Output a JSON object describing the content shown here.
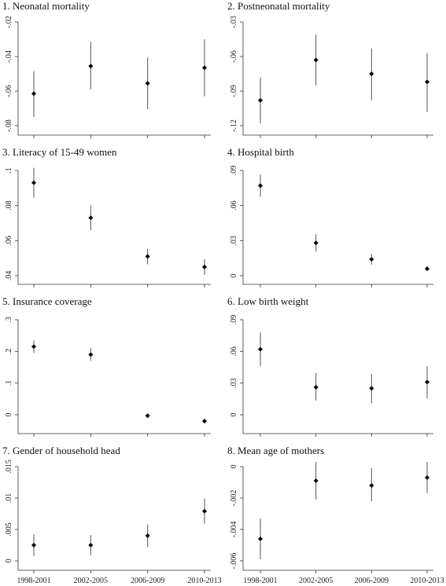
{
  "chart_data": [
    {
      "type": "scatter",
      "title": "1. Neonatal mortality",
      "categories": [
        "1998-2001",
        "2002-2005",
        "2006-2009",
        "2010-2013"
      ],
      "ylim": [
        -0.08,
        -0.02
      ],
      "yticks": [
        -0.08,
        -0.06,
        -0.04,
        -0.02
      ],
      "ytick_labels": [
        "-.08",
        "-.06",
        "-.04",
        "-.02"
      ],
      "show_xlabels": false,
      "points": [
        {
          "x": "1998-2001",
          "y": -0.0615,
          "lo": -0.075,
          "hi": -0.0485
        },
        {
          "x": "2002-2005",
          "y": -0.0455,
          "lo": -0.059,
          "hi": -0.0315
        },
        {
          "x": "2006-2009",
          "y": -0.0555,
          "lo": -0.0705,
          "hi": -0.0405
        },
        {
          "x": "2010-2013",
          "y": -0.0465,
          "lo": -0.063,
          "hi": -0.03
        }
      ]
    },
    {
      "type": "scatter",
      "title": "2. Postneonatal mortality",
      "categories": [
        "1998-2001",
        "2002-2005",
        "2006-2009",
        "2010-2013"
      ],
      "ylim": [
        -0.12,
        -0.03
      ],
      "yticks": [
        -0.12,
        -0.09,
        -0.06,
        -0.03
      ],
      "ytick_labels": [
        "-.12",
        "-.09",
        "-.06",
        "-.03"
      ],
      "show_xlabels": false,
      "points": [
        {
          "x": "1998-2001",
          "y": -0.098,
          "lo": -0.118,
          "hi": -0.078
        },
        {
          "x": "2002-2005",
          "y": -0.063,
          "lo": -0.085,
          "hi": -0.041
        },
        {
          "x": "2006-2009",
          "y": -0.075,
          "lo": -0.098,
          "hi": -0.053
        },
        {
          "x": "2010-2013",
          "y": -0.082,
          "lo": -0.108,
          "hi": -0.057
        }
      ]
    },
    {
      "type": "scatter",
      "title": "3. Literacy of 15-49 women",
      "categories": [
        "1998-2001",
        "2002-2005",
        "2006-2009",
        "2010-2013"
      ],
      "ylim": [
        0.04,
        0.1
      ],
      "yticks": [
        0.04,
        0.06,
        0.08,
        0.1
      ],
      "ytick_labels": [
        ".04",
        ".06",
        ".08",
        ".1"
      ],
      "show_xlabels": false,
      "points": [
        {
          "x": "1998-2001",
          "y": 0.093,
          "lo": 0.0845,
          "hi": 0.1015
        },
        {
          "x": "2002-2005",
          "y": 0.073,
          "lo": 0.066,
          "hi": 0.08
        },
        {
          "x": "2006-2009",
          "y": 0.051,
          "lo": 0.0465,
          "hi": 0.0555
        },
        {
          "x": "2010-2013",
          "y": 0.045,
          "lo": 0.0405,
          "hi": 0.0495
        }
      ]
    },
    {
      "type": "scatter",
      "title": "4. Hospital birth",
      "categories": [
        "1998-2001",
        "2002-2005",
        "2006-2009",
        "2010-2013"
      ],
      "ylim": [
        0,
        0.09
      ],
      "yticks": [
        0,
        0.03,
        0.06,
        0.09
      ],
      "ytick_labels": [
        "0",
        ".03",
        ".06",
        ".09"
      ],
      "show_xlabels": false,
      "points": [
        {
          "x": "1998-2001",
          "y": 0.077,
          "lo": 0.0675,
          "hi": 0.0865
        },
        {
          "x": "2002-2005",
          "y": 0.028,
          "lo": 0.0205,
          "hi": 0.0355
        },
        {
          "x": "2006-2009",
          "y": 0.014,
          "lo": 0.0095,
          "hi": 0.0185
        },
        {
          "x": "2010-2013",
          "y": 0.006,
          "lo": 0.004,
          "hi": 0.008
        }
      ]
    },
    {
      "type": "scatter",
      "title": "5. Insurance coverage",
      "categories": [
        "1998-2001",
        "2002-2005",
        "2006-2009",
        "2010-2013"
      ],
      "ylim": [
        0,
        0.3
      ],
      "yticks": [
        0,
        0.1,
        0.2,
        0.3
      ],
      "ytick_labels": [
        "0",
        ".1",
        ".2",
        ".3"
      ],
      "show_xlabels": false,
      "points": [
        {
          "x": "1998-2001",
          "y": 0.215,
          "lo": 0.195,
          "hi": 0.235
        },
        {
          "x": "2002-2005",
          "y": 0.19,
          "lo": 0.17,
          "hi": 0.21
        },
        {
          "x": "2006-2009",
          "y": -0.003,
          "lo": -0.006,
          "hi": 0.0
        },
        {
          "x": "2010-2013",
          "y": -0.02,
          "lo": -0.023,
          "hi": -0.017
        }
      ]
    },
    {
      "type": "scatter",
      "title": "6. Low birth weight",
      "categories": [
        "1998-2001",
        "2002-2005",
        "2006-2009",
        "2010-2013"
      ],
      "ylim": [
        0,
        0.09
      ],
      "yticks": [
        0,
        0.03,
        0.06,
        0.09
      ],
      "ytick_labels": [
        "0",
        ".03",
        ".06",
        ".09"
      ],
      "show_xlabels": false,
      "points": [
        {
          "x": "1998-2001",
          "y": 0.062,
          "lo": 0.046,
          "hi": 0.078
        },
        {
          "x": "2002-2005",
          "y": 0.026,
          "lo": 0.0135,
          "hi": 0.0395
        },
        {
          "x": "2006-2009",
          "y": 0.025,
          "lo": 0.011,
          "hi": 0.0385
        },
        {
          "x": "2010-2013",
          "y": 0.031,
          "lo": 0.0155,
          "hi": 0.046
        }
      ]
    },
    {
      "type": "scatter",
      "title": "7. Gender of household head",
      "categories": [
        "1998-2001",
        "2002-2005",
        "2006-2009",
        "2010-2013"
      ],
      "ylim": [
        0,
        0.015
      ],
      "yticks": [
        0,
        0.005,
        0.01,
        0.015
      ],
      "ytick_labels": [
        "0",
        ".005",
        ".01",
        ".015"
      ],
      "show_xlabels": true,
      "points": [
        {
          "x": "1998-2001",
          "y": 0.0025,
          "lo": 0.0008,
          "hi": 0.0042
        },
        {
          "x": "2002-2005",
          "y": 0.0025,
          "lo": 0.0009,
          "hi": 0.0041
        },
        {
          "x": "2006-2009",
          "y": 0.004,
          "lo": 0.0022,
          "hi": 0.0058
        },
        {
          "x": "2010-2013",
          "y": 0.0079,
          "lo": 0.0059,
          "hi": 0.0099
        }
      ]
    },
    {
      "type": "scatter",
      "title": "8. Mean age of mothers",
      "categories": [
        "1998-2001",
        "2002-2005",
        "2006-2009",
        "2010-2013"
      ],
      "ylim": [
        -0.006,
        0
      ],
      "yticks": [
        -0.006,
        -0.004,
        -0.002,
        0
      ],
      "ytick_labels": [
        "-.006",
        "-.004",
        "-.002",
        "0"
      ],
      "show_xlabels": true,
      "points": [
        {
          "x": "1998-2001",
          "y": -0.0046,
          "lo": -0.0059,
          "hi": -0.0033
        },
        {
          "x": "2002-2005",
          "y": -0.0009,
          "lo": -0.0021,
          "hi": 0.0003
        },
        {
          "x": "2006-2009",
          "y": -0.0012,
          "lo": -0.0022,
          "hi": -0.0001
        },
        {
          "x": "2010-2013",
          "y": -0.0007,
          "lo": -0.0017,
          "hi": 0.0003
        }
      ]
    }
  ]
}
